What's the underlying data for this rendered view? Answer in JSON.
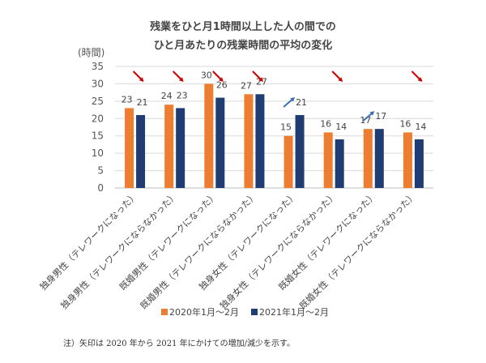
{
  "chart_data": {
    "type": "bar",
    "title": [
      "残業をひと月1時間以上した人の間での",
      "ひと月あたりの残業時間の平均の変化"
    ],
    "ylabel": "(時間)",
    "ylim": [
      0,
      35
    ],
    "yticks": [
      0,
      5,
      10,
      15,
      20,
      25,
      30,
      35
    ],
    "grid": true,
    "legend_position": "bottom",
    "categories": [
      "独身男性（テレワークになった）",
      "独身男性（テレワークにならなかった）",
      "既婚男性（テレワークになった）",
      "既婚男性（テレワークにならなかった）",
      "独身女性（テレワークになった）",
      "独身女性（テレワークにならなかった）",
      "既婚女性（テレワークになった）",
      "既婚女性（テレワークにならなかった）"
    ],
    "series": [
      {
        "name": "2020年1月～2月",
        "color": "#ed7d31",
        "values": [
          23,
          24,
          30,
          27,
          15,
          16,
          17,
          16
        ]
      },
      {
        "name": "2021年1月～2月",
        "color": "#1f3c73",
        "values": [
          21,
          23,
          26,
          27,
          21,
          14,
          17,
          14
        ]
      }
    ],
    "arrows": [
      "down",
      "down",
      "down",
      "down",
      "up",
      "down",
      "up",
      "down"
    ],
    "arrow_colors": {
      "down": "#cc0000",
      "up": "#3f6fb5"
    },
    "note": "注）矢印は 2020 年から 2021 年にかけての増加/減少を示す。"
  }
}
